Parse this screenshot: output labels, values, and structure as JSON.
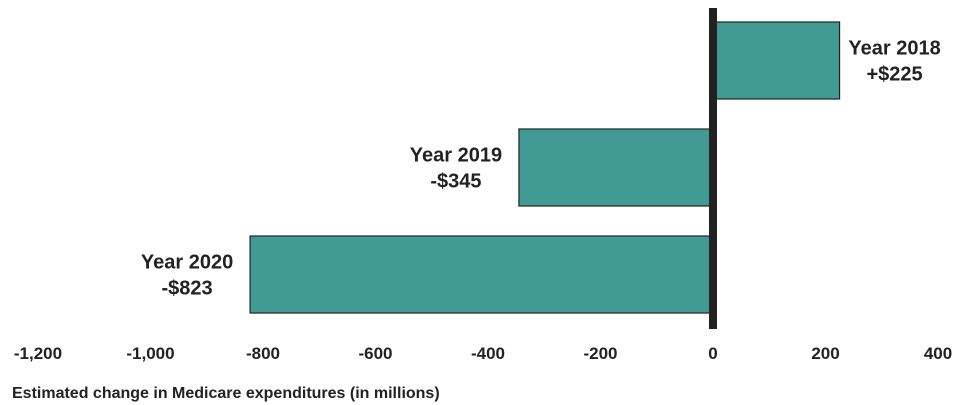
{
  "chart_data": {
    "type": "bar",
    "orientation": "horizontal",
    "categories": [
      "Year 2018",
      "Year 2019",
      "Year 2020"
    ],
    "values": [
      225,
      -345,
      -823
    ],
    "data_labels": [
      "+$225",
      "-$345",
      "-$823"
    ],
    "title": "",
    "xlabel": "Estimated change in Medicare expenditures (in millions)",
    "ylabel": "",
    "xlim": [
      -1200,
      400
    ],
    "xticks": [
      -1200,
      -1000,
      -800,
      -600,
      -400,
      -200,
      0,
      200,
      400
    ],
    "xtick_labels": [
      "-1,200",
      "-1,000",
      "-800",
      "-600",
      "-400",
      "-200",
      "0",
      "200",
      "400"
    ],
    "grid": false,
    "legend": "none",
    "bar_color": "#419a94",
    "axis_color": "#222222"
  }
}
